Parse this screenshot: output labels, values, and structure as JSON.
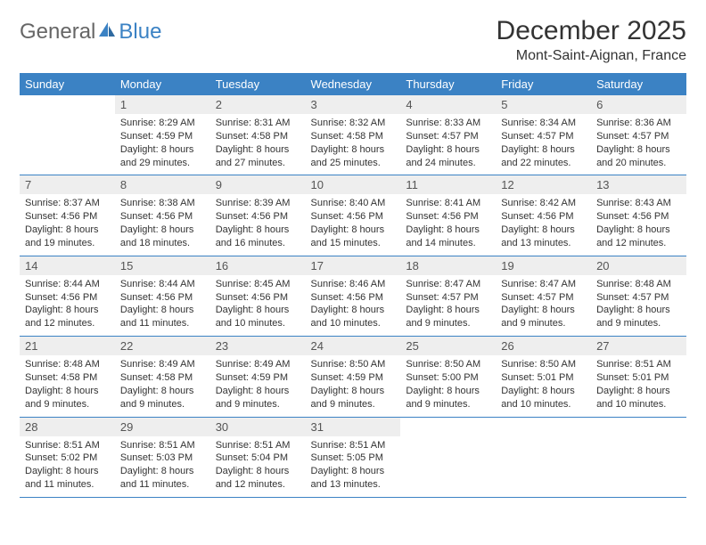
{
  "brand": {
    "part1": "General",
    "part2": "Blue"
  },
  "title": "December 2025",
  "location": "Mont-Saint-Aignan, France",
  "colors": {
    "header_bg": "#3b82c4",
    "header_text": "#ffffff",
    "daynum_bg": "#eeeeee",
    "row_divider": "#3b82c4",
    "body_text": "#333333"
  },
  "weekdays": [
    "Sunday",
    "Monday",
    "Tuesday",
    "Wednesday",
    "Thursday",
    "Friday",
    "Saturday"
  ],
  "first_weekday_index": 1,
  "days": [
    {
      "n": 1,
      "sunrise": "8:29 AM",
      "sunset": "4:59 PM",
      "daylight": "8 hours and 29 minutes."
    },
    {
      "n": 2,
      "sunrise": "8:31 AM",
      "sunset": "4:58 PM",
      "daylight": "8 hours and 27 minutes."
    },
    {
      "n": 3,
      "sunrise": "8:32 AM",
      "sunset": "4:58 PM",
      "daylight": "8 hours and 25 minutes."
    },
    {
      "n": 4,
      "sunrise": "8:33 AM",
      "sunset": "4:57 PM",
      "daylight": "8 hours and 24 minutes."
    },
    {
      "n": 5,
      "sunrise": "8:34 AM",
      "sunset": "4:57 PM",
      "daylight": "8 hours and 22 minutes."
    },
    {
      "n": 6,
      "sunrise": "8:36 AM",
      "sunset": "4:57 PM",
      "daylight": "8 hours and 20 minutes."
    },
    {
      "n": 7,
      "sunrise": "8:37 AM",
      "sunset": "4:56 PM",
      "daylight": "8 hours and 19 minutes."
    },
    {
      "n": 8,
      "sunrise": "8:38 AM",
      "sunset": "4:56 PM",
      "daylight": "8 hours and 18 minutes."
    },
    {
      "n": 9,
      "sunrise": "8:39 AM",
      "sunset": "4:56 PM",
      "daylight": "8 hours and 16 minutes."
    },
    {
      "n": 10,
      "sunrise": "8:40 AM",
      "sunset": "4:56 PM",
      "daylight": "8 hours and 15 minutes."
    },
    {
      "n": 11,
      "sunrise": "8:41 AM",
      "sunset": "4:56 PM",
      "daylight": "8 hours and 14 minutes."
    },
    {
      "n": 12,
      "sunrise": "8:42 AM",
      "sunset": "4:56 PM",
      "daylight": "8 hours and 13 minutes."
    },
    {
      "n": 13,
      "sunrise": "8:43 AM",
      "sunset": "4:56 PM",
      "daylight": "8 hours and 12 minutes."
    },
    {
      "n": 14,
      "sunrise": "8:44 AM",
      "sunset": "4:56 PM",
      "daylight": "8 hours and 12 minutes."
    },
    {
      "n": 15,
      "sunrise": "8:44 AM",
      "sunset": "4:56 PM",
      "daylight": "8 hours and 11 minutes."
    },
    {
      "n": 16,
      "sunrise": "8:45 AM",
      "sunset": "4:56 PM",
      "daylight": "8 hours and 10 minutes."
    },
    {
      "n": 17,
      "sunrise": "8:46 AM",
      "sunset": "4:56 PM",
      "daylight": "8 hours and 10 minutes."
    },
    {
      "n": 18,
      "sunrise": "8:47 AM",
      "sunset": "4:57 PM",
      "daylight": "8 hours and 9 minutes."
    },
    {
      "n": 19,
      "sunrise": "8:47 AM",
      "sunset": "4:57 PM",
      "daylight": "8 hours and 9 minutes."
    },
    {
      "n": 20,
      "sunrise": "8:48 AM",
      "sunset": "4:57 PM",
      "daylight": "8 hours and 9 minutes."
    },
    {
      "n": 21,
      "sunrise": "8:48 AM",
      "sunset": "4:58 PM",
      "daylight": "8 hours and 9 minutes."
    },
    {
      "n": 22,
      "sunrise": "8:49 AM",
      "sunset": "4:58 PM",
      "daylight": "8 hours and 9 minutes."
    },
    {
      "n": 23,
      "sunrise": "8:49 AM",
      "sunset": "4:59 PM",
      "daylight": "8 hours and 9 minutes."
    },
    {
      "n": 24,
      "sunrise": "8:50 AM",
      "sunset": "4:59 PM",
      "daylight": "8 hours and 9 minutes."
    },
    {
      "n": 25,
      "sunrise": "8:50 AM",
      "sunset": "5:00 PM",
      "daylight": "8 hours and 9 minutes."
    },
    {
      "n": 26,
      "sunrise": "8:50 AM",
      "sunset": "5:01 PM",
      "daylight": "8 hours and 10 minutes."
    },
    {
      "n": 27,
      "sunrise": "8:51 AM",
      "sunset": "5:01 PM",
      "daylight": "8 hours and 10 minutes."
    },
    {
      "n": 28,
      "sunrise": "8:51 AM",
      "sunset": "5:02 PM",
      "daylight": "8 hours and 11 minutes."
    },
    {
      "n": 29,
      "sunrise": "8:51 AM",
      "sunset": "5:03 PM",
      "daylight": "8 hours and 11 minutes."
    },
    {
      "n": 30,
      "sunrise": "8:51 AM",
      "sunset": "5:04 PM",
      "daylight": "8 hours and 12 minutes."
    },
    {
      "n": 31,
      "sunrise": "8:51 AM",
      "sunset": "5:05 PM",
      "daylight": "8 hours and 13 minutes."
    }
  ],
  "labels": {
    "sunrise": "Sunrise:",
    "sunset": "Sunset:",
    "daylight": "Daylight:"
  }
}
